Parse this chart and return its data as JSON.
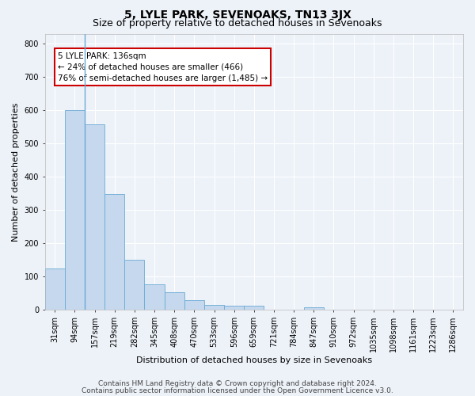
{
  "title": "5, LYLE PARK, SEVENOAKS, TN13 3JX",
  "subtitle": "Size of property relative to detached houses in Sevenoaks",
  "xlabel": "Distribution of detached houses by size in Sevenoaks",
  "ylabel": "Number of detached properties",
  "categories": [
    "31sqm",
    "94sqm",
    "157sqm",
    "219sqm",
    "282sqm",
    "345sqm",
    "408sqm",
    "470sqm",
    "533sqm",
    "596sqm",
    "659sqm",
    "721sqm",
    "784sqm",
    "847sqm",
    "910sqm",
    "972sqm",
    "1035sqm",
    "1098sqm",
    "1161sqm",
    "1223sqm",
    "1286sqm"
  ],
  "values": [
    125,
    600,
    557,
    347,
    150,
    76,
    52,
    30,
    14,
    13,
    13,
    0,
    0,
    7,
    0,
    0,
    0,
    0,
    0,
    0,
    0
  ],
  "bar_color": "#c5d8ed",
  "bar_edge_color": "#6aaad4",
  "annotation_text": "5 LYLE PARK: 136sqm\n← 24% of detached houses are smaller (466)\n76% of semi-detached houses are larger (1,485) →",
  "annotation_box_color": "#ffffff",
  "annotation_box_edge": "#cc0000",
  "ylim": [
    0,
    830
  ],
  "yticks": [
    0,
    100,
    200,
    300,
    400,
    500,
    600,
    700,
    800
  ],
  "footer1": "Contains HM Land Registry data © Crown copyright and database right 2024.",
  "footer2": "Contains public sector information licensed under the Open Government Licence v3.0.",
  "bg_color": "#edf2f9",
  "plot_bg_color": "#edf2f9",
  "grid_color": "#ffffff",
  "title_fontsize": 10,
  "subtitle_fontsize": 9,
  "axis_label_fontsize": 8,
  "tick_fontsize": 7,
  "annotation_fontsize": 7.5,
  "footer_fontsize": 6.5
}
